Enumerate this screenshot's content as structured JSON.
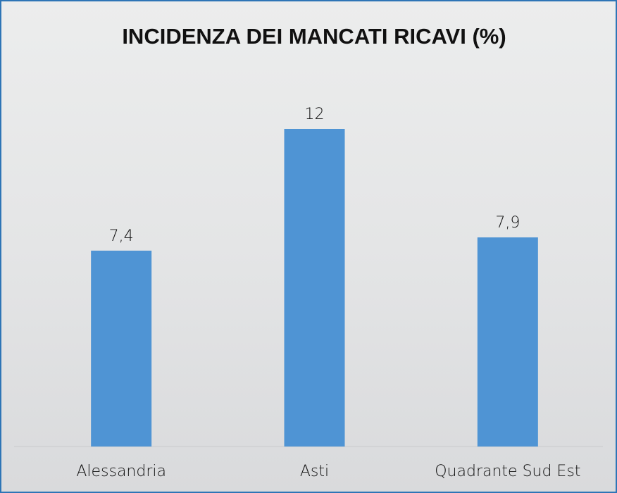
{
  "chart_data": {
    "type": "bar",
    "title": "INCIDENZA DEI MANCATI RICAVI (%)",
    "categories": [
      "Alessandria",
      "Asti",
      "Quadrante Sud Est"
    ],
    "values": [
      7.4,
      12,
      7.9
    ],
    "value_labels": [
      "7,4",
      "12",
      "7,9"
    ],
    "color": "#4f94d4"
  }
}
